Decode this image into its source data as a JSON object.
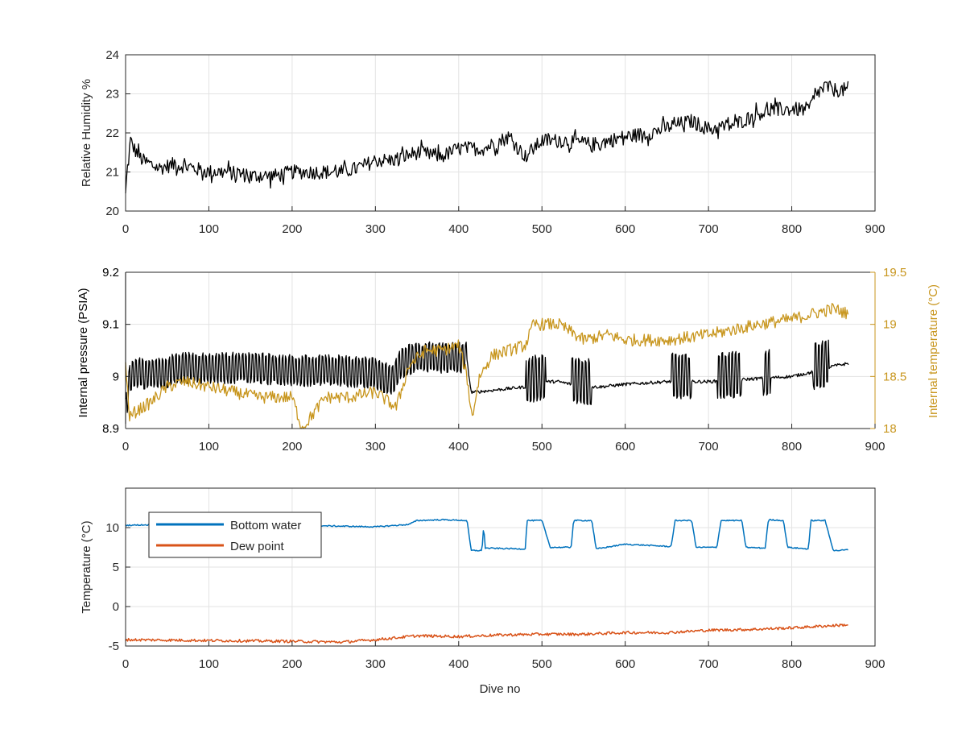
{
  "chart_data": [
    {
      "type": "line",
      "title": "",
      "xlabel": "",
      "ylabel": "Relative Humidity %",
      "xlim": [
        0,
        900
      ],
      "ylim": [
        20,
        24
      ],
      "xticks": [
        "0",
        "100",
        "200",
        "300",
        "400",
        "500",
        "600",
        "700",
        "800",
        "900"
      ],
      "yticks": [
        "20",
        "21",
        "22",
        "23",
        "24"
      ],
      "grid": true,
      "series": [
        {
          "color": "#000000",
          "x": [
            0,
            3,
            6,
            10,
            20,
            40,
            60,
            80,
            100,
            120,
            150,
            180,
            200,
            230,
            260,
            280,
            300,
            320,
            350,
            380,
            400,
            430,
            460,
            480,
            500,
            530,
            560,
            600,
            630,
            660,
            680,
            700,
            730,
            760,
            780,
            800,
            820,
            830,
            840,
            850,
            868
          ],
          "y": [
            20.4,
            21.3,
            21.8,
            21.6,
            21.3,
            21.1,
            21.2,
            21.1,
            21.0,
            21.0,
            20.9,
            20.9,
            21.0,
            21.0,
            21.0,
            21.1,
            21.3,
            21.3,
            21.5,
            21.4,
            21.6,
            21.6,
            21.9,
            21.4,
            21.8,
            21.8,
            21.7,
            21.9,
            22.0,
            22.2,
            22.3,
            22.1,
            22.2,
            22.5,
            22.6,
            22.6,
            22.6,
            23.0,
            23.2,
            23.1,
            23.1
          ],
          "noise": 0.34
        }
      ]
    },
    {
      "type": "line",
      "title": "",
      "xlabel": "",
      "ylabel": "Internal pressure (PSIA)",
      "ylabel_right": "Internal temperature (°C)",
      "xlim": [
        0,
        900
      ],
      "ylim": [
        8.9,
        9.2
      ],
      "ylim_right": [
        18,
        19.5
      ],
      "xticks": [
        "0",
        "100",
        "200",
        "300",
        "400",
        "500",
        "600",
        "700",
        "800",
        "900"
      ],
      "yticks": [
        "8.9",
        "9",
        "9.1",
        "9.2"
      ],
      "yticks_right": [
        "18",
        "18.5",
        "19",
        "19.5"
      ],
      "grid": true,
      "series": [
        {
          "axis": "left",
          "color": "#000000",
          "x": [
            0,
            5,
            10,
            50,
            60,
            100,
            150,
            200,
            250,
            300,
            320,
            330,
            350,
            380,
            410,
            415,
            420,
            450,
            480,
            500,
            520,
            550,
            570,
            600,
            650,
            700,
            750,
            800,
            830,
            850,
            868
          ],
          "y": [
            8.92,
            8.99,
            9.0,
            9.0,
            9.01,
            9.01,
            9.01,
            9.005,
            9.005,
            9.0,
            8.985,
            9.02,
            9.03,
            9.03,
            9.03,
            8.97,
            8.97,
            8.975,
            8.98,
            8.99,
            8.99,
            8.98,
            8.98,
            8.985,
            8.99,
            8.99,
            8.995,
            9.0,
            9.01,
            9.02,
            9.025
          ]
        },
        {
          "axis": "right",
          "color": "#C8961E",
          "x": [
            0,
            5,
            10,
            30,
            50,
            70,
            100,
            130,
            160,
            200,
            212,
            240,
            270,
            300,
            325,
            340,
            360,
            380,
            400,
            410,
            416,
            425,
            440,
            460,
            480,
            490,
            520,
            550,
            580,
            600,
            650,
            700,
            730,
            760,
            800,
            850,
            868
          ],
          "y": [
            18.6,
            18.1,
            18.15,
            18.25,
            18.4,
            18.45,
            18.4,
            18.35,
            18.3,
            18.3,
            18.0,
            18.3,
            18.3,
            18.35,
            18.2,
            18.6,
            18.75,
            18.75,
            18.8,
            18.5,
            18.1,
            18.5,
            18.7,
            18.75,
            18.8,
            19.0,
            19.0,
            18.85,
            18.9,
            18.85,
            18.85,
            18.9,
            18.95,
            19.0,
            19.05,
            19.15,
            19.1
          ]
        }
      ]
    },
    {
      "type": "line",
      "title": "",
      "xlabel": "Dive no",
      "ylabel": "Temperature (°C)",
      "xlim": [
        0,
        900
      ],
      "ylim": [
        -5,
        15
      ],
      "xticks": [
        "0",
        "100",
        "200",
        "300",
        "400",
        "500",
        "600",
        "700",
        "800",
        "900"
      ],
      "yticks": [
        "-5",
        "0",
        "5",
        "10"
      ],
      "grid": true,
      "legend": "top-left",
      "series": [
        {
          "name": "Bottom water",
          "color": "#0072BD",
          "x": [
            0,
            50,
            100,
            200,
            300,
            340,
            350,
            380,
            410,
            415,
            428,
            430,
            432,
            480,
            482,
            485,
            500,
            510,
            535,
            538,
            540,
            560,
            565,
            600,
            655,
            660,
            680,
            685,
            710,
            715,
            740,
            745,
            768,
            772,
            790,
            795,
            820,
            823,
            840,
            850,
            855,
            868
          ],
          "y": [
            10.3,
            10.4,
            10.4,
            10.3,
            10.1,
            10.4,
            10.9,
            11.0,
            10.9,
            7.1,
            7.1,
            10.3,
            7.4,
            7.3,
            10.9,
            10.9,
            10.9,
            7.5,
            7.5,
            10.9,
            10.9,
            10.9,
            7.3,
            7.9,
            7.6,
            10.9,
            10.9,
            7.5,
            7.5,
            10.9,
            10.9,
            7.5,
            7.4,
            11.0,
            10.9,
            7.5,
            7.3,
            10.9,
            10.9,
            7.1,
            7.1,
            7.2
          ]
        },
        {
          "name": "Dew point",
          "color": "#D95319",
          "x": [
            0,
            100,
            200,
            260,
            300,
            350,
            400,
            450,
            500,
            550,
            600,
            650,
            700,
            750,
            800,
            850,
            868
          ],
          "y": [
            -4.2,
            -4.3,
            -4.4,
            -4.5,
            -4.2,
            -3.7,
            -3.8,
            -3.6,
            -3.5,
            -3.5,
            -3.3,
            -3.3,
            -3.0,
            -2.9,
            -2.7,
            -2.4,
            -2.3
          ]
        }
      ]
    }
  ]
}
